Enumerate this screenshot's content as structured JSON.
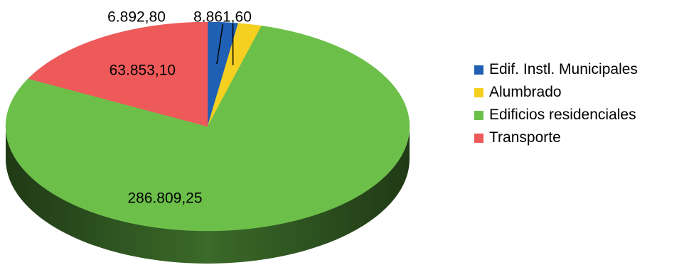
{
  "chart_data": {
    "type": "pie",
    "style": "3d",
    "categories": [
      "Edif. Instl. Municipales",
      "Alumbrado",
      "Edificios residenciales",
      "Transporte"
    ],
    "values": [
      8861.6,
      6892.8,
      286809.25,
      63853.1
    ],
    "value_labels": [
      "8.861,60",
      "6.892,80",
      "286.809,25",
      "63.853,10"
    ],
    "colors": [
      "#1f5fb4",
      "#f5d020",
      "#6cc04a",
      "#ee5a5a"
    ],
    "legend_position": "right"
  }
}
